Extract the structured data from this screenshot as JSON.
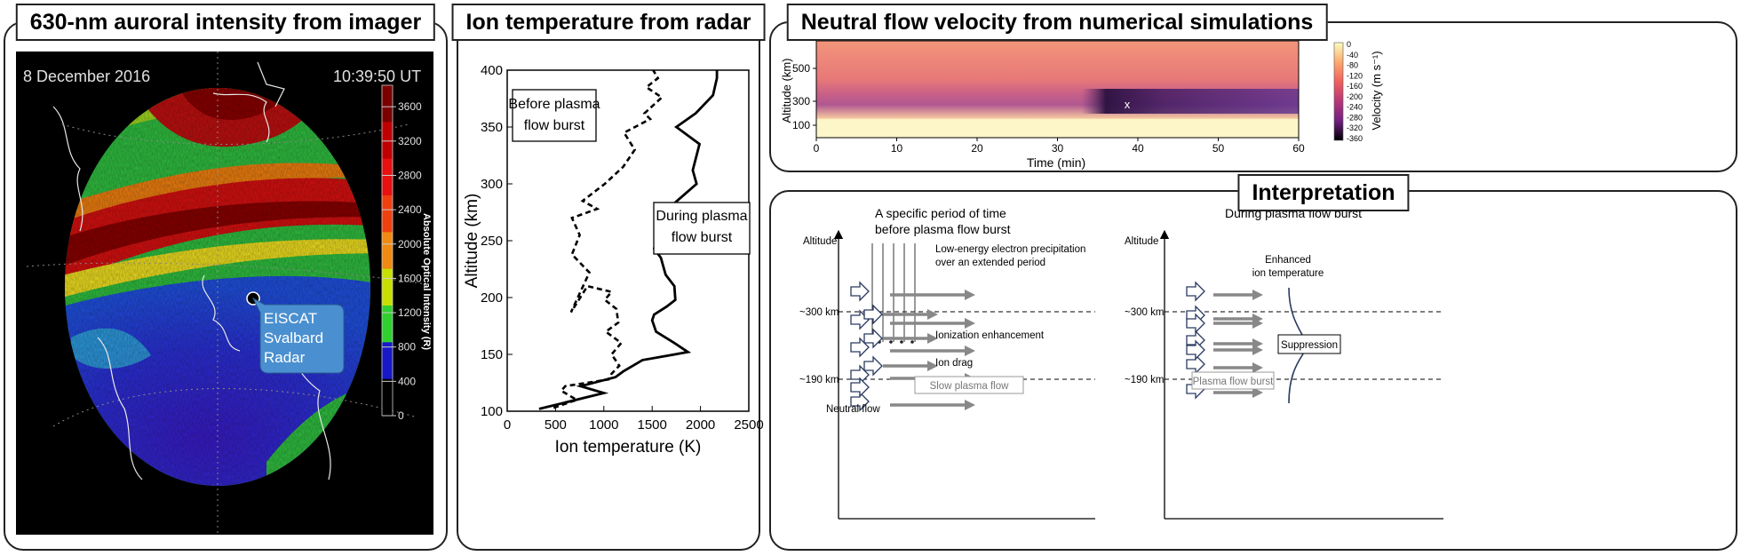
{
  "panel_a": {
    "title": "630-nm auroral intensity from imager",
    "date": "8 December 2016",
    "time": "10:39:50 UT",
    "station_label_lines": [
      "EISCAT",
      "Svalbard",
      "Radar"
    ],
    "colorbar_label": "Absolute Optical Intensity (R)",
    "colorbar_ticks": [
      "3600",
      "3200",
      "2800",
      "2400",
      "2000",
      "1600",
      "1200",
      "800",
      "400",
      "0"
    ],
    "colorbar_colors": [
      "#7a0000",
      "#c00000",
      "#e81010",
      "#f04010",
      "#f08a10",
      "#c8e000",
      "#30d030",
      "#1818c8",
      "#000000"
    ]
  },
  "panel_b": {
    "title": "Ion temperature from radar"
  },
  "chart_data": {
    "type": "line",
    "xlabel": "Ion temperature (K)",
    "ylabel": "Altitude (km)",
    "xlim": [
      0,
      2500
    ],
    "ylim": [
      100,
      400
    ],
    "xticks": [
      "0",
      "500",
      "1000",
      "1500",
      "2000",
      "2500"
    ],
    "yticks": [
      "100",
      "150",
      "200",
      "250",
      "300",
      "350",
      "400"
    ],
    "series": [
      {
        "name": "Before plasma flow burst",
        "style": "dashed",
        "points": [
          [
            480,
            103
          ],
          [
            720,
            110
          ],
          [
            560,
            118
          ],
          [
            600,
            122
          ],
          [
            1050,
            128
          ],
          [
            1080,
            133
          ],
          [
            1160,
            140
          ],
          [
            1080,
            150
          ],
          [
            1180,
            160
          ],
          [
            1020,
            170
          ],
          [
            1150,
            178
          ],
          [
            1130,
            190
          ],
          [
            1010,
            198
          ],
          [
            1080,
            205
          ],
          [
            830,
            210
          ],
          [
            660,
            187
          ],
          [
            850,
            222
          ],
          [
            670,
            238
          ],
          [
            750,
            255
          ],
          [
            670,
            270
          ],
          [
            930,
            278
          ],
          [
            780,
            285
          ],
          [
            1010,
            300
          ],
          [
            1200,
            315
          ],
          [
            1320,
            330
          ],
          [
            1210,
            345
          ],
          [
            1480,
            357
          ],
          [
            1420,
            362
          ],
          [
            1600,
            376
          ],
          [
            1440,
            385
          ],
          [
            1560,
            393
          ],
          [
            1510,
            400
          ]
        ]
      },
      {
        "name": "During plasma flow burst",
        "style": "solid",
        "points": [
          [
            330,
            102
          ],
          [
            1000,
            116
          ],
          [
            760,
            122
          ],
          [
            1120,
            130
          ],
          [
            1200,
            135
          ],
          [
            1400,
            145
          ],
          [
            1870,
            152
          ],
          [
            1730,
            160
          ],
          [
            1540,
            170
          ],
          [
            1500,
            180
          ],
          [
            1520,
            185
          ],
          [
            1650,
            192
          ],
          [
            1740,
            198
          ],
          [
            1730,
            210
          ],
          [
            1640,
            220
          ],
          [
            1590,
            235
          ],
          [
            1520,
            243
          ],
          [
            1570,
            262
          ],
          [
            1690,
            280
          ],
          [
            1960,
            300
          ],
          [
            1920,
            312
          ],
          [
            1960,
            325
          ],
          [
            1990,
            335
          ],
          [
            1750,
            350
          ],
          [
            1950,
            362
          ],
          [
            2130,
            378
          ],
          [
            2170,
            393
          ],
          [
            2170,
            400
          ]
        ]
      }
    ]
  },
  "panel_c": {
    "title": "Neutral flow velocity from numerical simulations",
    "xlabel": "Time (min)",
    "ylabel": "Altitude (km)",
    "xticks": [
      "0",
      "10",
      "20",
      "30",
      "40",
      "50",
      "60"
    ],
    "yticks": [
      "100",
      "300",
      "500"
    ],
    "marker": "x",
    "colorbar_label": "Velocity (m s⁻¹)",
    "colorbar_ticks": [
      "0",
      "-40",
      "-80",
      "-120",
      "-160",
      "-200",
      "-240",
      "-280",
      "-320",
      "-360"
    ]
  },
  "panel_d": {
    "title": "Interpretation",
    "left_heading_1": "A specific period of time",
    "left_heading_2": "before plasma flow burst",
    "right_heading": "During plasma flow burst",
    "altitude_label": "Altitude",
    "level_300": "~300 km",
    "level_190": "~190 km",
    "precip_1": "Low-energy electron precipitation",
    "precip_2": "over an extended period",
    "ionization": "Ionization enhancement",
    "ion_drag": "Ion drag",
    "slow_flow": "Slow plasma flow",
    "neutral_flow": "Neutral flow",
    "enhanced_1": "Enhanced",
    "enhanced_2": "ion temperature",
    "suppression": "Suppression",
    "burst": "Plasma flow burst"
  }
}
